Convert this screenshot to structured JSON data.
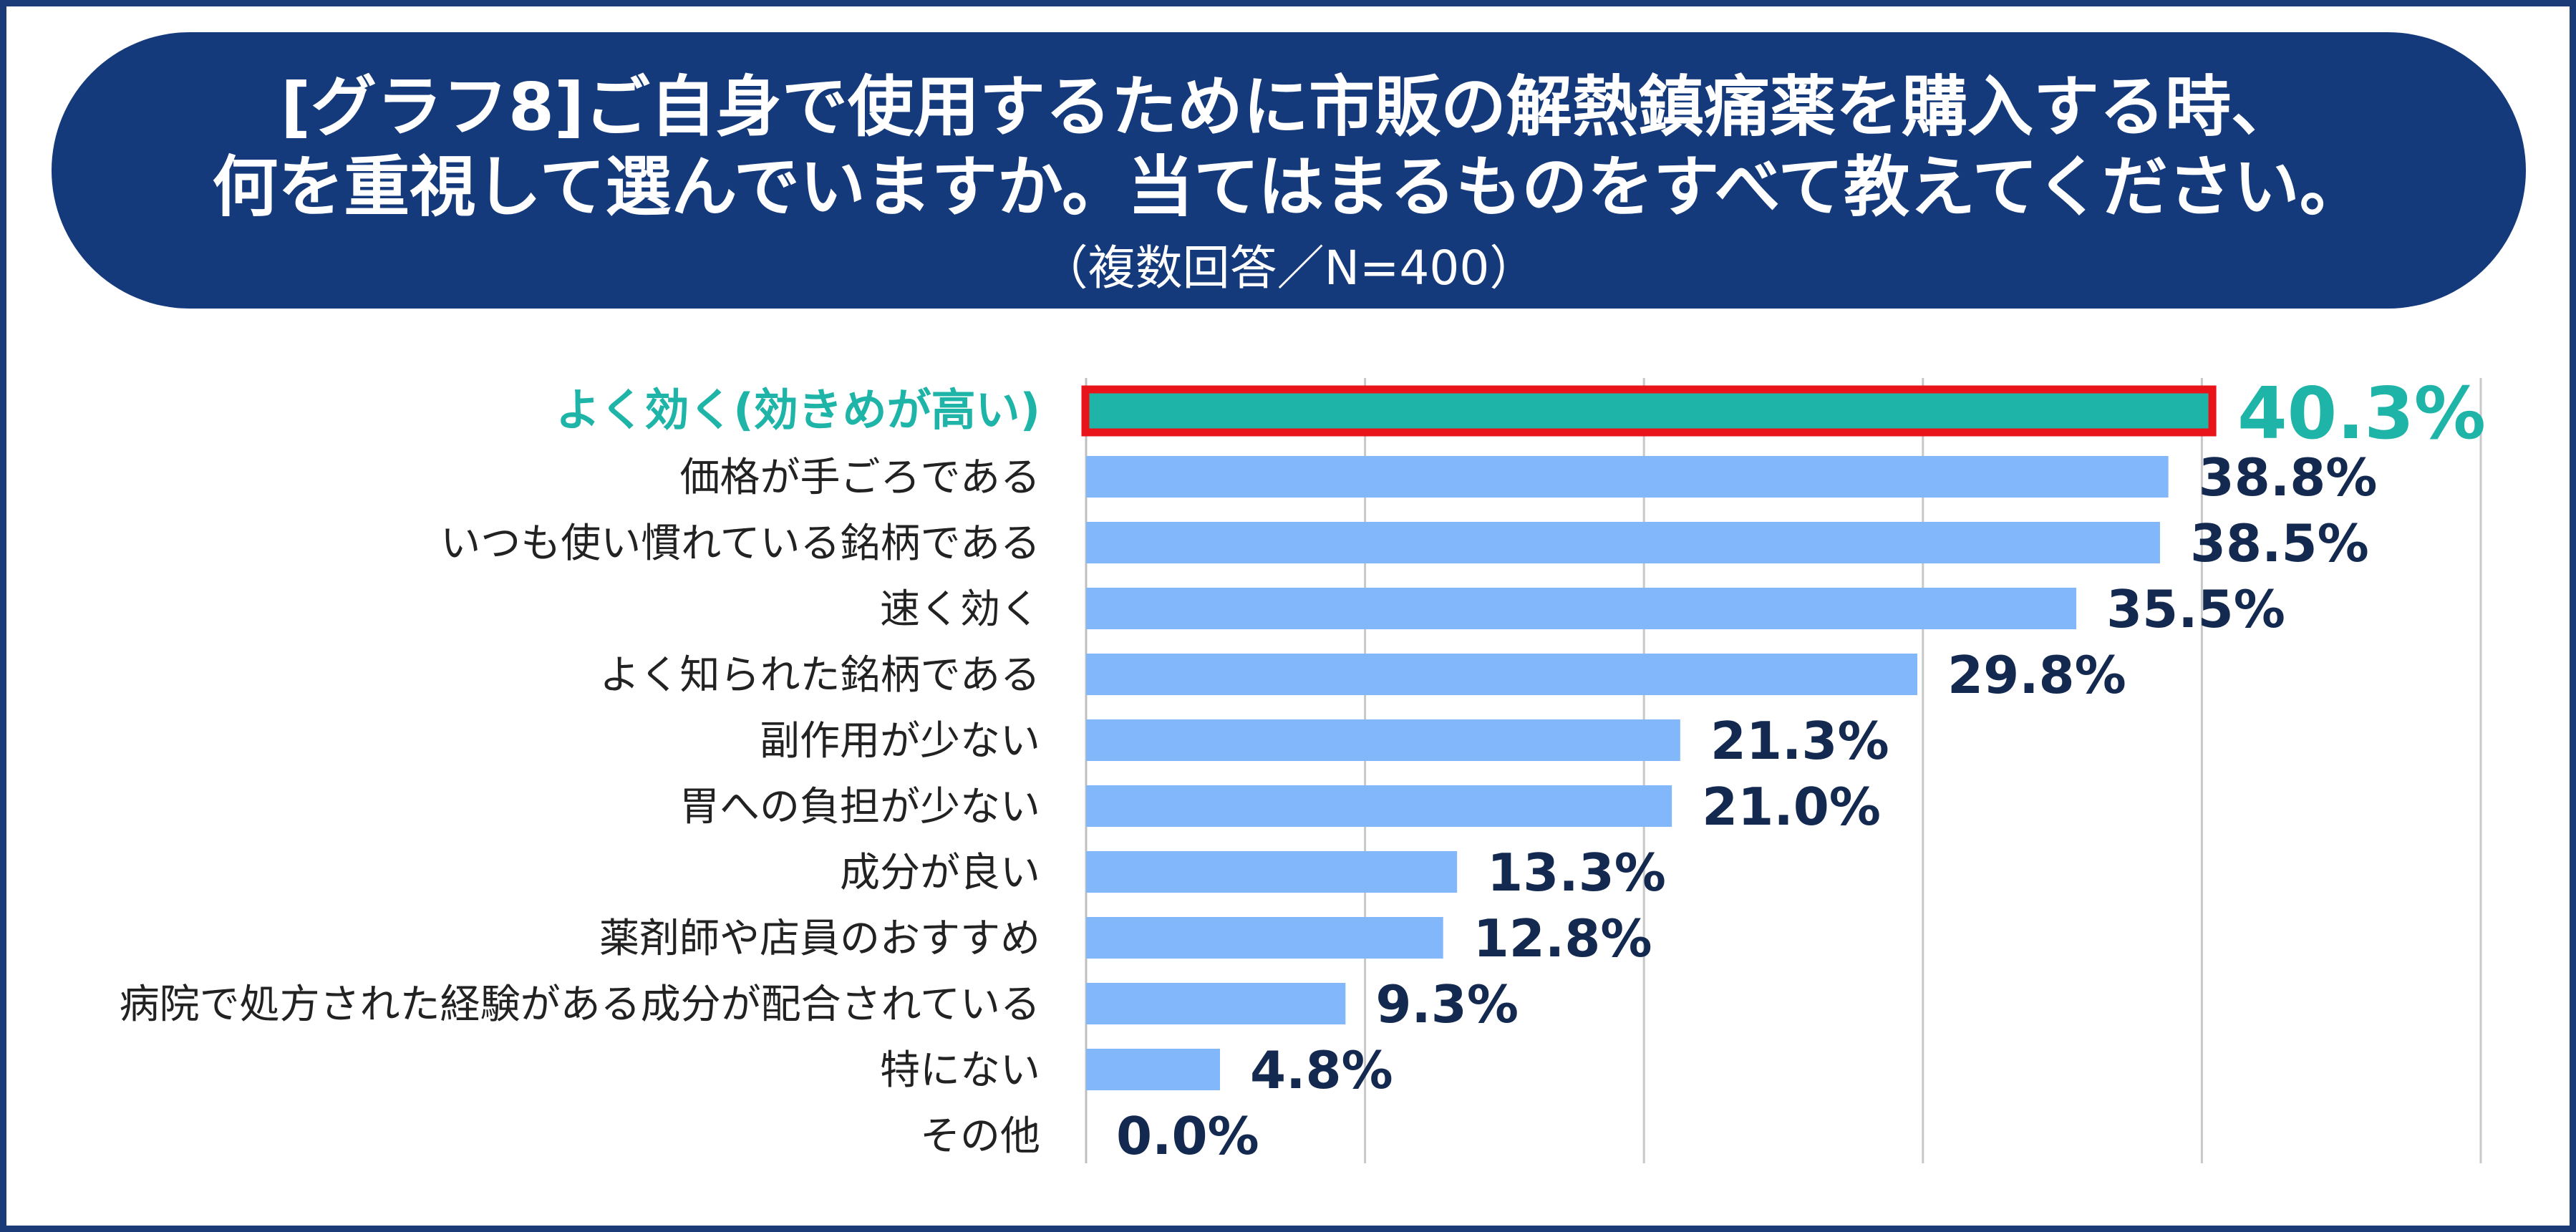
{
  "title": {
    "line1": "[グラフ8]ご自身で使用するために市販の解熱鎮痛薬を購入する時、",
    "line2": "何を重視して選んでいますか。当てはまるものをすべて教えてください。",
    "sub": "（複数回答／N=400）"
  },
  "colors": {
    "frame": "#1b3a78",
    "title_bg": "#143a7c",
    "bar": "#82b7fb",
    "highlight_bar": "#1eb4a8",
    "highlight_outline": "#e8141a",
    "value_text": "#13294f",
    "grid": "#c8c8c8"
  },
  "chart_data": {
    "type": "bar",
    "orientation": "horizontal",
    "unit": "%",
    "xlim": [
      0,
      50
    ],
    "grid": true,
    "highlight_index": 0,
    "categories": [
      "よく効く(効きめが高い)",
      "価格が手ごろである",
      "いつも使い慣れている銘柄である",
      "速く効く",
      "よく知られた銘柄である",
      "副作用が少ない",
      "胃への負担が少ない",
      "成分が良い",
      "薬剤師や店員のおすすめ",
      "病院で処方された経験がある成分が配合されている",
      "特にない",
      "その他"
    ],
    "values": [
      40.3,
      38.8,
      38.5,
      35.5,
      29.8,
      21.3,
      21.0,
      13.3,
      12.8,
      9.3,
      4.8,
      0.0
    ],
    "value_labels": [
      "40.3%",
      "38.8%",
      "38.5%",
      "35.5%",
      "29.8%",
      "21.3%",
      "21.0%",
      "13.3%",
      "12.8%",
      "9.3%",
      "4.8%",
      "0.0%"
    ]
  }
}
